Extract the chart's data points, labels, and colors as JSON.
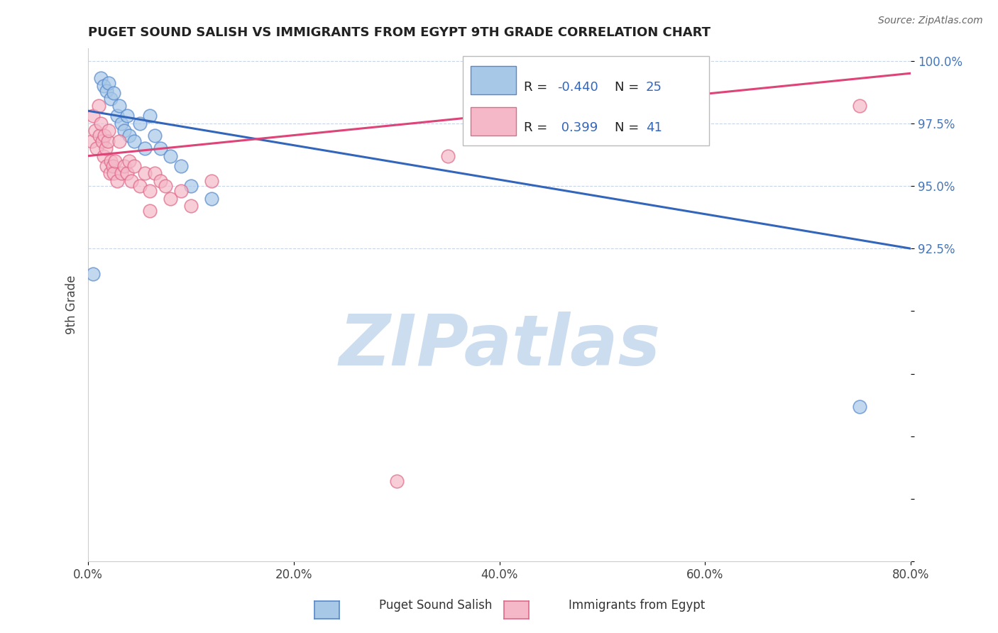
{
  "title": "PUGET SOUND SALISH VS IMMIGRANTS FROM EGYPT 9TH GRADE CORRELATION CHART",
  "source": "Source: ZipAtlas.com",
  "ylabel": "9th Grade",
  "x_tick_labels": [
    "0.0%",
    "20.0%",
    "40.0%",
    "60.0%",
    "80.0%"
  ],
  "x_ticks": [
    0.0,
    20.0,
    40.0,
    60.0,
    80.0
  ],
  "y_ticks": [
    80.0,
    82.5,
    85.0,
    87.5,
    90.0,
    92.5,
    95.0,
    97.5,
    100.0
  ],
  "y_tick_labels": [
    "",
    "",
    "",
    "",
    "",
    "92.5%",
    "95.0%",
    "97.5%",
    "100.0%"
  ],
  "xlim": [
    0.0,
    80.0
  ],
  "ylim": [
    80.0,
    100.5
  ],
  "blue_R": -0.44,
  "blue_N": 25,
  "pink_R": 0.399,
  "pink_N": 41,
  "blue_color": "#a8c8e8",
  "pink_color": "#f4b8c8",
  "blue_edge_color": "#5588cc",
  "pink_edge_color": "#e06888",
  "blue_line_color": "#3366bb",
  "pink_line_color": "#dd4477",
  "watermark": "ZIPatlas",
  "watermark_color": "#ccddf0",
  "blue_line_x0": 0.0,
  "blue_line_y0": 98.0,
  "blue_line_x1": 80.0,
  "blue_line_y1": 92.5,
  "pink_line_x0": 0.0,
  "pink_line_y0": 96.2,
  "pink_line_x1": 80.0,
  "pink_line_y1": 99.5,
  "blue_scatter_x": [
    0.5,
    1.2,
    1.5,
    1.8,
    2.0,
    2.2,
    2.5,
    2.8,
    3.0,
    3.2,
    3.5,
    3.8,
    4.0,
    4.5,
    5.0,
    5.5,
    6.0,
    6.5,
    7.0,
    8.0,
    9.0,
    10.0,
    12.0,
    55.0,
    75.0
  ],
  "blue_scatter_y": [
    91.5,
    99.3,
    99.0,
    98.8,
    99.1,
    98.5,
    98.7,
    97.8,
    98.2,
    97.5,
    97.2,
    97.8,
    97.0,
    96.8,
    97.5,
    96.5,
    97.8,
    97.0,
    96.5,
    96.2,
    95.8,
    95.0,
    94.5,
    97.5,
    86.2
  ],
  "pink_scatter_x": [
    0.3,
    0.5,
    0.7,
    0.8,
    1.0,
    1.1,
    1.2,
    1.4,
    1.5,
    1.6,
    1.7,
    1.8,
    1.9,
    2.0,
    2.1,
    2.2,
    2.4,
    2.5,
    2.6,
    2.8,
    3.0,
    3.2,
    3.5,
    3.8,
    4.0,
    4.2,
    4.5,
    5.0,
    5.5,
    6.0,
    6.5,
    7.0,
    7.5,
    8.0,
    9.0,
    10.0,
    12.0,
    30.0,
    35.0,
    75.0,
    6.0
  ],
  "pink_scatter_y": [
    96.8,
    97.8,
    97.2,
    96.5,
    98.2,
    97.0,
    97.5,
    96.8,
    96.2,
    97.0,
    96.5,
    95.8,
    96.8,
    97.2,
    95.5,
    96.0,
    95.8,
    95.5,
    96.0,
    95.2,
    96.8,
    95.5,
    95.8,
    95.5,
    96.0,
    95.2,
    95.8,
    95.0,
    95.5,
    94.8,
    95.5,
    95.2,
    95.0,
    94.5,
    94.8,
    94.2,
    95.2,
    83.2,
    96.2,
    98.2,
    94.0
  ],
  "legend_labels": [
    "Puget Sound Salish",
    "Immigrants from Egypt"
  ]
}
